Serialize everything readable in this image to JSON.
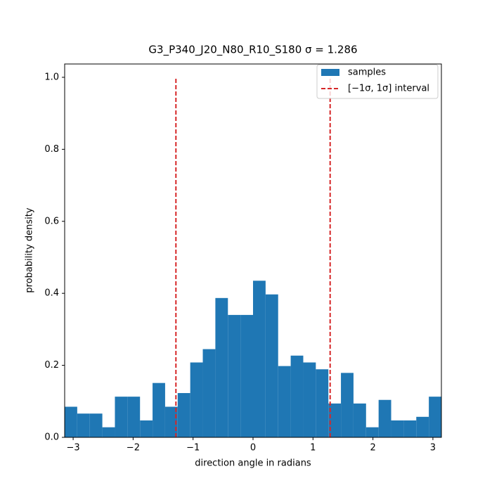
{
  "chart_data": {
    "type": "histogram",
    "title": "G3_P340_J20_N80_R10_S180 σ = 1.286",
    "x_label": "direction angle in radians",
    "y_label": "probability density",
    "bins": [
      -3.1416,
      -2.9322,
      -2.7227,
      -2.5133,
      -2.3038,
      -2.0944,
      -1.885,
      -1.6755,
      -1.4661,
      -1.2566,
      -1.0472,
      -0.8378,
      -0.6283,
      -0.4189,
      -0.2094,
      0,
      0.2094,
      0.4189,
      0.6283,
      0.8378,
      1.0472,
      1.2566,
      1.4661,
      1.6755,
      1.885,
      2.0944,
      2.3038,
      2.5133,
      2.7227,
      2.9322,
      3.1416
    ],
    "series": [
      {
        "name": "samples",
        "color": "#1f77b4",
        "values": [
          0.085,
          0.066,
          0.066,
          0.028,
          0.113,
          0.113,
          0.047,
          0.151,
          0.085,
          0.123,
          0.208,
          0.245,
          0.387,
          0.34,
          0.34,
          0.435,
          0.397,
          0.198,
          0.227,
          0.208,
          0.189,
          0.094,
          0.179,
          0.094,
          0.028,
          0.104,
          0.047,
          0.047,
          0.057,
          0.113
        ]
      }
    ],
    "lines": {
      "name": "[−1σ, 1σ] interval",
      "color": "#d62728",
      "x": [
        -1.286,
        1.286
      ],
      "ymin": 0,
      "ymax": 1.0
    },
    "xlim": [
      -3.1416,
      3.1416
    ],
    "ylim": [
      0,
      1.037
    ],
    "xticks": [
      {
        "value": -3,
        "label": "−3"
      },
      {
        "value": -2,
        "label": "−2"
      },
      {
        "value": -1,
        "label": "−1"
      },
      0,
      1,
      2,
      3
    ],
    "yticks": [
      {
        "value": 0,
        "label": "0.0"
      },
      0.2,
      0.4,
      0.6,
      0.8,
      {
        "value": 1,
        "label": "1.0"
      }
    ],
    "legend": "upper right"
  }
}
